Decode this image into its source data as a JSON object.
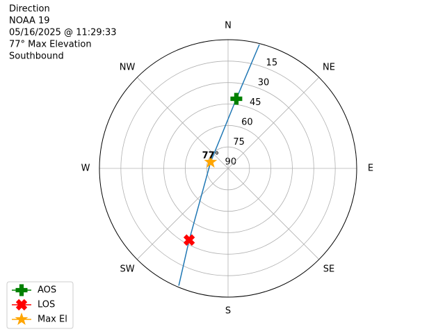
{
  "chart_data": {
    "type": "polar",
    "title_lines": [
      "Direction",
      "NOAA 19",
      "05/16/2025 @ 11:29:33",
      "77° Max Elevation",
      "Southbound"
    ],
    "direction": "clockwise",
    "zero_location": "N",
    "xticks": [
      {
        "value": 0,
        "label": "N"
      },
      {
        "value": 45,
        "label": "NE"
      },
      {
        "value": 90,
        "label": "E"
      },
      {
        "value": 135,
        "label": "SE"
      },
      {
        "value": 180,
        "label": "S"
      },
      {
        "value": 225,
        "label": "SW"
      },
      {
        "value": 270,
        "label": "W"
      },
      {
        "value": 315,
        "label": "NW"
      }
    ],
    "ylim": [
      0,
      90
    ],
    "yticks": [
      15,
      30,
      45,
      60,
      75,
      90
    ],
    "grid": true,
    "series": [
      {
        "color": "#1f77b4",
        "azimuth": [
          14.2,
          6.8,
          290,
          208.5,
          202.8
        ],
        "elevation": [
          0.7,
          41,
          77,
          33,
          1
        ]
      }
    ],
    "markers": [
      {
        "name": "AOS",
        "color": "#008000",
        "marker": "plus",
        "azimuth": 6.8,
        "elevation": 41
      },
      {
        "name": "LOS",
        "color": "#ff0000",
        "marker": "x",
        "azimuth": 208.5,
        "elevation": 33
      },
      {
        "name": "Max El",
        "color": "#ffa500",
        "marker": "star",
        "azimuth": 290,
        "elevation": 77
      }
    ],
    "annotations": [
      {
        "text": "77°",
        "azimuth": 290,
        "elevation": 77
      }
    ],
    "legend": "lower left"
  }
}
